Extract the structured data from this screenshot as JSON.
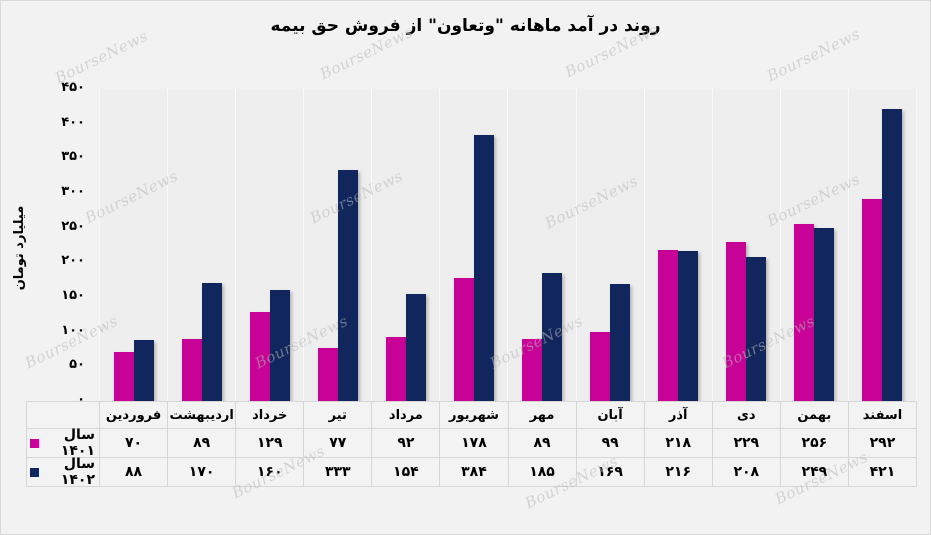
{
  "watermark": {
    "text": "BourseNews"
  },
  "chart_data": {
    "type": "bar",
    "title": "روند در آمد ماهانه \"وتعاون\" از فروش حق بیمه",
    "ylabel": "میلیارد تومان",
    "categories": [
      "فروردین",
      "اردیبهشت",
      "خرداد",
      "تیر",
      "مرداد",
      "شهریور",
      "مهر",
      "آبان",
      "آذر",
      "دی",
      "بهمن",
      "اسفند"
    ],
    "series": [
      {
        "name": "سال ۱۴۰۱",
        "color": "#C80197",
        "values": [
          70,
          89,
          129,
          77,
          92,
          178,
          89,
          99,
          218,
          229,
          256,
          292
        ]
      },
      {
        "name": "سال ۱۴۰۲",
        "color": "#10265C",
        "values": [
          88,
          170,
          160,
          333,
          154,
          384,
          185,
          169,
          216,
          208,
          249,
          421
        ]
      }
    ],
    "ylim": [
      0,
      450
    ],
    "ytick_step": 50,
    "digit_style": "persian",
    "grid": "vertical-category-separators",
    "legend_position": "table-left-column",
    "plot_background": "#EEEEEE",
    "page_background": "#F2F2F2"
  }
}
